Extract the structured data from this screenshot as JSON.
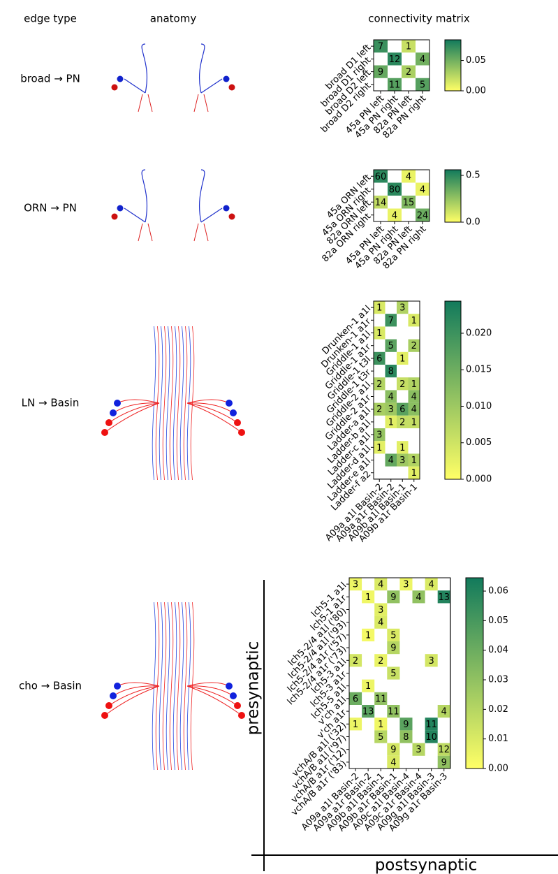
{
  "headers": [
    "edge type",
    "anatomy",
    "connectivity matrix"
  ],
  "chart_data": [
    {
      "type": "heatmap",
      "title": "broad → PN",
      "rows": [
        "broad D1 left",
        "broad D1 right",
        "broad D2 left",
        "broad D2 right"
      ],
      "columns": [
        "45a PN left",
        "45a PN right",
        "82a PN left",
        "82a PN right"
      ],
      "values": [
        [
          7,
          null,
          1,
          null
        ],
        [
          null,
          12,
          null,
          4
        ],
        [
          9,
          null,
          2,
          null
        ],
        [
          null,
          11,
          null,
          5
        ]
      ],
      "weights": [
        [
          0.07,
          null,
          0.02,
          null
        ],
        [
          null,
          0.075,
          null,
          0.05
        ],
        [
          0.055,
          null,
          0.03,
          null
        ],
        [
          null,
          0.06,
          null,
          0.06
        ]
      ],
      "clim": [
        0,
        0.084
      ],
      "cticks": [
        {
          "value": 0,
          "label": "0.00"
        },
        {
          "value": 0.05,
          "label": "0.05"
        }
      ],
      "colormap": [
        "#ffff66",
        "#127a5c"
      ]
    },
    {
      "type": "heatmap",
      "title": "ORN → PN",
      "rows": [
        "45a ORN left",
        "45a ORN right",
        "82a ORN left",
        "82a ORN right"
      ],
      "columns": [
        "45a PN left",
        "45a PN right",
        "82a PN left",
        "82a PN right"
      ],
      "values": [
        [
          60,
          null,
          4,
          null
        ],
        [
          null,
          80,
          null,
          4
        ],
        [
          14,
          null,
          15,
          null
        ],
        [
          null,
          4,
          null,
          24
        ]
      ],
      "weights": [
        [
          0.5,
          null,
          0.05,
          null
        ],
        [
          null,
          0.5,
          null,
          0.05
        ],
        [
          0.15,
          null,
          0.3,
          null
        ],
        [
          null,
          0.05,
          null,
          0.35
        ]
      ],
      "clim": [
        0,
        0.56
      ],
      "cticks": [
        {
          "value": 0,
          "label": "0.0"
        },
        0.5
      ],
      "colormap": [
        "#ffff66",
        "#127a5c"
      ]
    },
    {
      "type": "heatmap",
      "title": "LN → Basin",
      "rows": [
        "Drunken-1 a1l",
        "Drunken-1 a1r",
        "Griddle-1 a1l",
        "Griddle-1 a1r",
        "Griddle-1 t3l",
        "Griddle-1 t3r",
        "Griddle-2 a1l",
        "Griddle-2 a1r",
        "Ladder-a a1l",
        "Ladder-b a1l",
        "Ladder-c a1l",
        "Ladder-d a1l",
        "Ladder-e a1l",
        "Ladder-f a2"
      ],
      "columns": [
        "A09a a1l Basin-2",
        "A09a a1r Basin-2",
        "A09b a1l Basin-1",
        "A09b a1r Basin-1"
      ],
      "values": [
        [
          1,
          null,
          3,
          null
        ],
        [
          null,
          7,
          null,
          1
        ],
        [
          1,
          null,
          null,
          null
        ],
        [
          null,
          5,
          null,
          2
        ],
        [
          6,
          null,
          1,
          null
        ],
        [
          null,
          8,
          null,
          null
        ],
        [
          2,
          null,
          2,
          1
        ],
        [
          null,
          4,
          null,
          4
        ],
        [
          2,
          3,
          6,
          4
        ],
        [
          null,
          1,
          2,
          1
        ],
        [
          3,
          null,
          null,
          null
        ],
        [
          1,
          null,
          1,
          null
        ],
        [
          null,
          4,
          3,
          1
        ],
        [
          null,
          null,
          null,
          1
        ]
      ],
      "weights": [
        [
          0.004,
          null,
          0.008,
          null
        ],
        [
          null,
          0.02,
          null,
          0.004
        ],
        [
          0.004,
          null,
          null,
          null
        ],
        [
          null,
          0.017,
          null,
          0.009
        ],
        [
          0.02,
          null,
          0.003,
          null
        ],
        [
          null,
          0.022,
          null,
          null
        ],
        [
          0.008,
          null,
          0.006,
          0.008
        ],
        [
          null,
          0.012,
          null,
          0.012
        ],
        [
          0.009,
          0.01,
          0.017,
          0.012
        ],
        [
          null,
          0.003,
          0.006,
          0.006
        ],
        [
          0.011,
          null,
          null,
          null
        ],
        [
          0.003,
          null,
          0.003,
          null
        ],
        [
          null,
          0.016,
          0.01,
          0.008
        ],
        [
          null,
          null,
          null,
          0.003
        ]
      ],
      "clim": [
        0,
        0.0244
      ],
      "cticks": [
        {
          "value": 0,
          "label": "0.000"
        },
        {
          "value": 0.005,
          "label": "0.005"
        },
        {
          "value": 0.01,
          "label": "0.010"
        },
        {
          "value": 0.015,
          "label": "0.015"
        },
        {
          "value": 0.02,
          "label": "0.020"
        }
      ],
      "colormap": [
        "#ffff66",
        "#127a5c"
      ]
    },
    {
      "type": "heatmap",
      "title": "cho → Basin",
      "xlabel": "postsynaptic",
      "ylabel": "presynaptic",
      "rows": [
        "lch5-1 a1l",
        "lch5-1 a1r",
        "lch5-2/4 a1l ('80)",
        "lch5-2/4 a1l ('93)",
        "lch5-2/4 a1r ('57)",
        "lch5-2/4 a1r ('73)",
        "lch5-3 a1l",
        "lch5-3 a1r",
        "lch5-5 a1l",
        "v'ch a1l",
        "v'ch a1r",
        "vchA/B a1l ('32)",
        "vchA/B a1l ('97)",
        "vchA/B a1r ('12)",
        "vchA/B a1r ('83)"
      ],
      "columns": [
        "A09a a1l Basin-2",
        "A09a a1r Basin-2",
        "A09b a1l Basin-1",
        "A09b a1r Basin-1",
        "A09c a1l Basin-4",
        "A09c a1r Basin-4",
        "A09g a1l Basin-3",
        "A09g a1r Basin-3"
      ],
      "values": [
        [
          3,
          null,
          4,
          null,
          3,
          null,
          4,
          null
        ],
        [
          null,
          1,
          null,
          9,
          null,
          4,
          null,
          13
        ],
        [
          null,
          null,
          3,
          null,
          null,
          null,
          null,
          null
        ],
        [
          null,
          null,
          4,
          null,
          null,
          null,
          null,
          null
        ],
        [
          null,
          1,
          null,
          5,
          null,
          null,
          null,
          null
        ],
        [
          null,
          null,
          null,
          9,
          null,
          null,
          null,
          null
        ],
        [
          2,
          null,
          2,
          null,
          null,
          null,
          3,
          null
        ],
        [
          null,
          null,
          null,
          5,
          null,
          null,
          null,
          null
        ],
        [
          null,
          1,
          null,
          null,
          null,
          null,
          null,
          null
        ],
        [
          6,
          null,
          11,
          null,
          null,
          null,
          null,
          null
        ],
        [
          null,
          13,
          null,
          11,
          null,
          null,
          null,
          4
        ],
        [
          1,
          null,
          1,
          null,
          9,
          null,
          11,
          null
        ],
        [
          null,
          null,
          5,
          null,
          8,
          null,
          10,
          null
        ],
        [
          null,
          null,
          null,
          9,
          null,
          3,
          null,
          12
        ],
        [
          null,
          null,
          null,
          4,
          null,
          null,
          null,
          9
        ]
      ],
      "weights": [
        [
          0.005,
          null,
          0.01,
          null,
          0.005,
          null,
          0.01,
          null
        ],
        [
          null,
          0.004,
          null,
          0.03,
          null,
          0.03,
          null,
          0.06
        ],
        [
          null,
          null,
          0.008,
          null,
          null,
          null,
          null,
          null
        ],
        [
          null,
          null,
          0.01,
          null,
          null,
          null,
          null,
          null
        ],
        [
          null,
          0.003,
          null,
          0.01,
          null,
          null,
          null,
          null
        ],
        [
          null,
          null,
          null,
          0.02,
          null,
          null,
          null,
          null
        ],
        [
          0.012,
          null,
          0.006,
          null,
          null,
          null,
          0.012,
          null
        ],
        [
          null,
          null,
          null,
          0.015,
          null,
          null,
          null,
          null
        ],
        [
          null,
          0.005,
          null,
          null,
          null,
          null,
          null,
          null
        ],
        [
          0.04,
          null,
          0.03,
          null,
          null,
          null,
          null,
          null
        ],
        [
          null,
          0.045,
          null,
          0.03,
          null,
          null,
          null,
          0.02
        ],
        [
          0.005,
          null,
          0.004,
          null,
          0.045,
          null,
          0.06,
          null
        ],
        [
          null,
          null,
          0.02,
          null,
          0.03,
          null,
          0.06,
          null
        ],
        [
          null,
          null,
          null,
          0.012,
          null,
          0.02,
          null,
          0.018
        ],
        [
          null,
          null,
          null,
          0.01,
          null,
          null,
          null,
          0.03
        ]
      ],
      "clim": [
        0,
        0.0645
      ],
      "cticks": [
        {
          "value": 0,
          "label": "0.00"
        },
        {
          "value": 0.01,
          "label": "0.01"
        },
        {
          "value": 0.02,
          "label": "0.02"
        },
        {
          "value": 0.03,
          "label": "0.03"
        },
        {
          "value": 0.04,
          "label": "0.04"
        },
        {
          "value": 0.05,
          "label": "0.05"
        },
        {
          "value": 0.06,
          "label": "0.06"
        }
      ],
      "colormap": [
        "#ffff66",
        "#127a5c"
      ]
    }
  ]
}
